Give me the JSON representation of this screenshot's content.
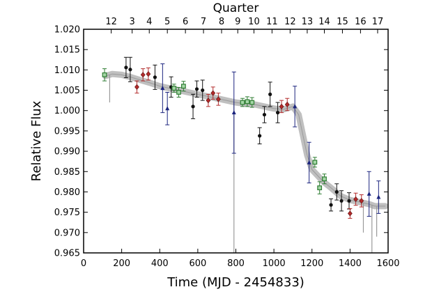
{
  "chart_data": {
    "type": "scatter",
    "xlabel": "Time (MJD - 2454833)",
    "ylabel": "Relative Flux",
    "top_axis_title": "Quarter",
    "xlim": [
      0,
      1600
    ],
    "ylim": [
      0.965,
      1.02
    ],
    "x_ticks": [
      "0",
      "200",
      "400",
      "600",
      "800",
      "1000",
      "1200",
      "1400",
      "1600"
    ],
    "y_ticks": [
      "0.965",
      "0.970",
      "0.975",
      "0.980",
      "0.985",
      "0.990",
      "0.995",
      "1.000",
      "1.005",
      "1.010",
      "1.015",
      "1.020"
    ],
    "quarter_ticks": [
      {
        "label": "12",
        "x": 145
      },
      {
        "label": "3",
        "x": 255
      },
      {
        "label": "4",
        "x": 345
      },
      {
        "label": "5",
        "x": 440
      },
      {
        "label": "6",
        "x": 535
      },
      {
        "label": "7",
        "x": 630
      },
      {
        "label": "8",
        "x": 725
      },
      {
        "label": "9",
        "x": 810
      },
      {
        "label": "10",
        "x": 895
      },
      {
        "label": "11",
        "x": 990
      },
      {
        "label": "12",
        "x": 1085
      },
      {
        "label": "13",
        "x": 1175
      },
      {
        "label": "14",
        "x": 1265
      },
      {
        "label": "15",
        "x": 1360
      },
      {
        "label": "16",
        "x": 1455
      },
      {
        "label": "17",
        "x": 1545
      }
    ],
    "colors": {
      "band": "#b5b5b5",
      "black": "#111111",
      "red": "#b22a2a",
      "green": "#2e7d32",
      "green_fill": "#a5d6a7",
      "navy": "#1a237e"
    },
    "light_curve": [
      [
        115,
        1.0085
      ],
      [
        150,
        1.009
      ],
      [
        200,
        1.0088
      ],
      [
        250,
        1.0082
      ],
      [
        300,
        1.0075
      ],
      [
        350,
        1.0068
      ],
      [
        400,
        1.006
      ],
      [
        450,
        1.0055
      ],
      [
        500,
        1.005
      ],
      [
        550,
        1.0045
      ],
      [
        600,
        1.004
      ],
      [
        650,
        1.0035
      ],
      [
        700,
        1.003
      ],
      [
        750,
        1.0025
      ],
      [
        800,
        1.002
      ],
      [
        850,
        1.0017
      ],
      [
        900,
        1.0015
      ],
      [
        950,
        1.001
      ],
      [
        1000,
        1.0005
      ],
      [
        1050,
        1.0003
      ],
      [
        1100,
        1.001
      ],
      [
        1130,
        0.999
      ],
      [
        1150,
        0.9945
      ],
      [
        1175,
        0.989
      ],
      [
        1200,
        0.9855
      ],
      [
        1230,
        0.984
      ],
      [
        1260,
        0.9825
      ],
      [
        1300,
        0.981
      ],
      [
        1350,
        0.979
      ],
      [
        1400,
        0.978
      ],
      [
        1450,
        0.9775
      ],
      [
        1500,
        0.977
      ],
      [
        1530,
        0.9765
      ],
      [
        1560,
        0.9765
      ],
      [
        1585,
        0.9765
      ]
    ],
    "dropouts": [
      {
        "x": 137,
        "y_low": 1.002
      },
      {
        "x": 790,
        "y_low": 0.965
      },
      {
        "x": 1470,
        "y_low": 0.97
      },
      {
        "x": 1515,
        "y_low": 0.965
      },
      {
        "x": 1540,
        "y_low": 0.969
      }
    ],
    "series": [
      {
        "marker": "circle",
        "color": "black",
        "points": [
          {
            "x": 223,
            "y": 1.0106,
            "err": 0.0025
          },
          {
            "x": 245,
            "y": 1.0101,
            "err": 0.003
          },
          {
            "x": 375,
            "y": 1.0082,
            "err": 0.003
          },
          {
            "x": 460,
            "y": 1.0058,
            "err": 0.0025
          },
          {
            "x": 575,
            "y": 1.001,
            "err": 0.003
          },
          {
            "x": 595,
            "y": 1.0053,
            "err": 0.002
          },
          {
            "x": 625,
            "y": 1.005,
            "err": 0.0025
          },
          {
            "x": 925,
            "y": 0.9938,
            "err": 0.002
          },
          {
            "x": 950,
            "y": 0.999,
            "err": 0.002
          },
          {
            "x": 980,
            "y": 1.004,
            "err": 0.003
          },
          {
            "x": 1020,
            "y": 0.9995,
            "err": 0.0025
          },
          {
            "x": 1300,
            "y": 0.9768,
            "err": 0.0015
          },
          {
            "x": 1330,
            "y": 0.98,
            "err": 0.002
          },
          {
            "x": 1355,
            "y": 0.9778,
            "err": 0.0025
          },
          {
            "x": 1395,
            "y": 0.9778,
            "err": 0.002
          }
        ]
      },
      {
        "marker": "diamond",
        "color": "red",
        "points": [
          {
            "x": 280,
            "y": 1.0058,
            "err": 0.0015
          },
          {
            "x": 312,
            "y": 1.0088,
            "err": 0.0015
          },
          {
            "x": 340,
            "y": 1.009,
            "err": 0.0015
          },
          {
            "x": 655,
            "y": 1.0025,
            "err": 0.0015
          },
          {
            "x": 680,
            "y": 1.0043,
            "err": 0.0015
          },
          {
            "x": 708,
            "y": 1.0028,
            "err": 0.0015
          },
          {
            "x": 1040,
            "y": 1.001,
            "err": 0.0015
          },
          {
            "x": 1070,
            "y": 1.0015,
            "err": 0.0015
          },
          {
            "x": 1400,
            "y": 0.9747,
            "err": 0.0012
          },
          {
            "x": 1430,
            "y": 0.9782,
            "err": 0.0015
          },
          {
            "x": 1460,
            "y": 0.9778,
            "err": 0.0015
          }
        ]
      },
      {
        "marker": "square",
        "color": "green",
        "points": [
          {
            "x": 110,
            "y": 1.0088,
            "err": 0.0015
          },
          {
            "x": 475,
            "y": 1.0055,
            "err": 0.001
          },
          {
            "x": 500,
            "y": 1.0045,
            "err": 0.0012
          },
          {
            "x": 525,
            "y": 1.006,
            "err": 0.0012
          },
          {
            "x": 835,
            "y": 1.002,
            "err": 0.001
          },
          {
            "x": 860,
            "y": 1.0022,
            "err": 0.0012
          },
          {
            "x": 885,
            "y": 1.002,
            "err": 0.0012
          },
          {
            "x": 1215,
            "y": 0.9873,
            "err": 0.0012
          },
          {
            "x": 1240,
            "y": 0.981,
            "err": 0.0015
          },
          {
            "x": 1265,
            "y": 0.9832,
            "err": 0.0012
          }
        ]
      },
      {
        "marker": "triangle",
        "color": "navy",
        "points": [
          {
            "x": 415,
            "y": 1.0055,
            "err": 0.006
          },
          {
            "x": 440,
            "y": 1.0005,
            "err": 0.004
          },
          {
            "x": 790,
            "y": 0.9995,
            "err": 0.01
          },
          {
            "x": 1110,
            "y": 1.001,
            "err": 0.005
          },
          {
            "x": 1185,
            "y": 0.9872,
            "err": 0.005
          },
          {
            "x": 1500,
            "y": 0.9795,
            "err": 0.0055
          },
          {
            "x": 1550,
            "y": 0.9787,
            "err": 0.004
          }
        ]
      }
    ]
  }
}
